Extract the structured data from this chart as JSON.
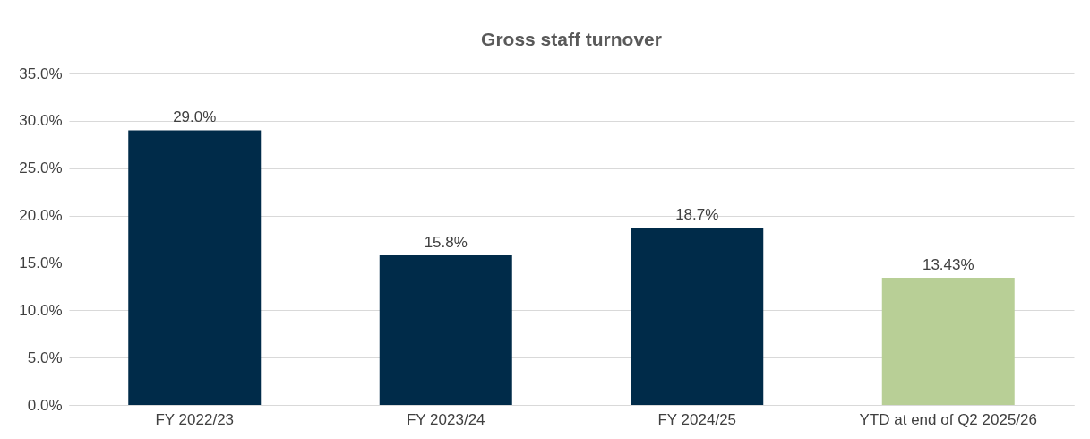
{
  "chart_data": {
    "type": "bar",
    "title": "Gross staff turnover",
    "categories": [
      "FY 2022/23",
      "FY 2023/24",
      "FY 2024/25",
      "YTD at end of Q2 2025/26"
    ],
    "values": [
      29.0,
      15.8,
      18.7,
      13.43
    ],
    "colors": [
      "#002b49",
      "#002b49",
      "#002b49",
      "#b8cf96"
    ],
    "value_labels": [
      "29.0%",
      "15.8%",
      "18.7%",
      "13.43%"
    ],
    "ylim": [
      0,
      35
    ],
    "yticks": [
      {
        "value": 0,
        "label": "0.0%"
      },
      {
        "value": 5,
        "label": "5.0%"
      },
      {
        "value": 10,
        "label": "10.0%"
      },
      {
        "value": 15,
        "label": "15.0%"
      },
      {
        "value": 20,
        "label": "20.0%"
      },
      {
        "value": 25,
        "label": "25.0%"
      },
      {
        "value": 30,
        "label": "30.0%"
      },
      {
        "value": 35,
        "label": "35.0%"
      }
    ],
    "grid": "y"
  }
}
